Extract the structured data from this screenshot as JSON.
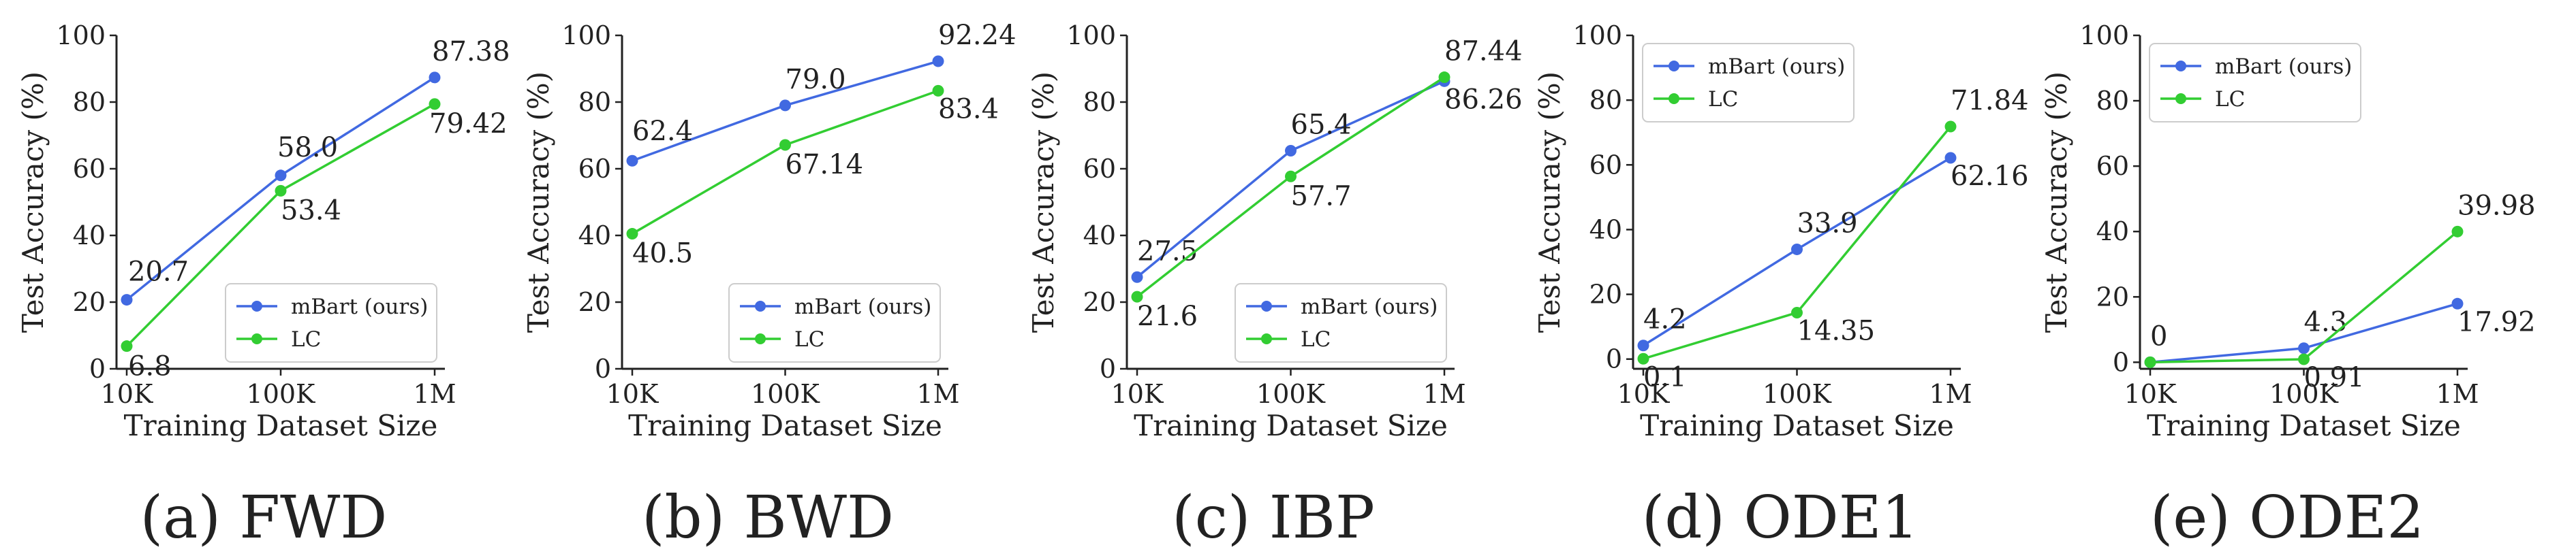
{
  "chart_data": [
    {
      "type": "line",
      "caption": "(a) FWD",
      "xlabel": "Training Dataset Size",
      "ylabel": "Test Accuracy (%)",
      "categories": [
        "10K",
        "100K",
        "1M"
      ],
      "ylim": [
        0,
        100
      ],
      "yticks": [
        "0",
        "20",
        "40",
        "60",
        "80",
        "100"
      ],
      "legend_position": "lower-right",
      "series": [
        {
          "name": "mBart (ours)",
          "color": "#4169e1",
          "values": [
            20.7,
            58.0,
            87.38
          ],
          "labels": [
            "20.7",
            "58.0",
            "87.38"
          ]
        },
        {
          "name": "LC",
          "color": "#32cd32",
          "values": [
            6.8,
            53.4,
            79.42
          ],
          "labels": [
            "6.8",
            "53.4",
            "79.42"
          ]
        }
      ]
    },
    {
      "type": "line",
      "caption": "(b) BWD",
      "xlabel": "Training Dataset Size",
      "ylabel": "Test Accuracy (%)",
      "categories": [
        "10K",
        "100K",
        "1M"
      ],
      "ylim": [
        0,
        100
      ],
      "yticks": [
        "0",
        "20",
        "40",
        "60",
        "80",
        "100"
      ],
      "legend_position": "lower-right",
      "series": [
        {
          "name": "mBart (ours)",
          "color": "#4169e1",
          "values": [
            62.4,
            79.0,
            92.24
          ],
          "labels": [
            "62.4",
            "79.0",
            "92.24"
          ]
        },
        {
          "name": "LC",
          "color": "#32cd32",
          "values": [
            40.5,
            67.14,
            83.4
          ],
          "labels": [
            "40.5",
            "67.14",
            "83.4"
          ]
        }
      ]
    },
    {
      "type": "line",
      "caption": "(c) IBP",
      "xlabel": "Training Dataset Size",
      "ylabel": "Test Accuracy (%)",
      "categories": [
        "10K",
        "100K",
        "1M"
      ],
      "ylim": [
        0,
        100
      ],
      "yticks": [
        "0",
        "20",
        "40",
        "60",
        "80",
        "100"
      ],
      "legend_position": "lower-right",
      "series": [
        {
          "name": "mBart (ours)",
          "color": "#4169e1",
          "values": [
            27.5,
            65.4,
            86.26
          ],
          "labels": [
            "27.5",
            "65.4",
            "86.26"
          ]
        },
        {
          "name": "LC",
          "color": "#32cd32",
          "values": [
            21.6,
            57.7,
            87.44
          ],
          "labels": [
            "21.6",
            "57.7",
            "87.44"
          ]
        }
      ]
    },
    {
      "type": "line",
      "caption": "(d) ODE1",
      "xlabel": "Training Dataset Size",
      "ylabel": "Test Accuracy (%)",
      "categories": [
        "10K",
        "100K",
        "1M"
      ],
      "ylim": [
        -3,
        100
      ],
      "yticks": [
        "0",
        "20",
        "40",
        "60",
        "80",
        "100"
      ],
      "legend_position": "upper-left",
      "series": [
        {
          "name": "mBart (ours)",
          "color": "#4169e1",
          "values": [
            4.2,
            33.9,
            62.16
          ],
          "labels": [
            "4.2",
            "33.9",
            "62.16"
          ]
        },
        {
          "name": "LC",
          "color": "#32cd32",
          "values": [
            0.1,
            14.35,
            71.84
          ],
          "labels": [
            "0.1",
            "14.35",
            "71.84"
          ]
        }
      ]
    },
    {
      "type": "line",
      "caption": "(e) ODE2",
      "xlabel": "Training Dataset Size",
      "ylabel": "Test Accuracy (%)",
      "categories": [
        "10K",
        "100K",
        "1M"
      ],
      "ylim": [
        -2,
        100
      ],
      "yticks": [
        "0",
        "20",
        "40",
        "60",
        "80",
        "100"
      ],
      "legend_position": "upper-left",
      "series": [
        {
          "name": "mBart (ours)",
          "color": "#4169e1",
          "values": [
            0,
            4.3,
            17.92
          ],
          "labels": [
            "0",
            "4.3",
            "17.92"
          ]
        },
        {
          "name": "LC",
          "color": "#32cd32",
          "values": [
            0,
            0.91,
            39.98
          ],
          "labels": [
            "",
            "0.91",
            "39.98"
          ]
        }
      ]
    }
  ]
}
